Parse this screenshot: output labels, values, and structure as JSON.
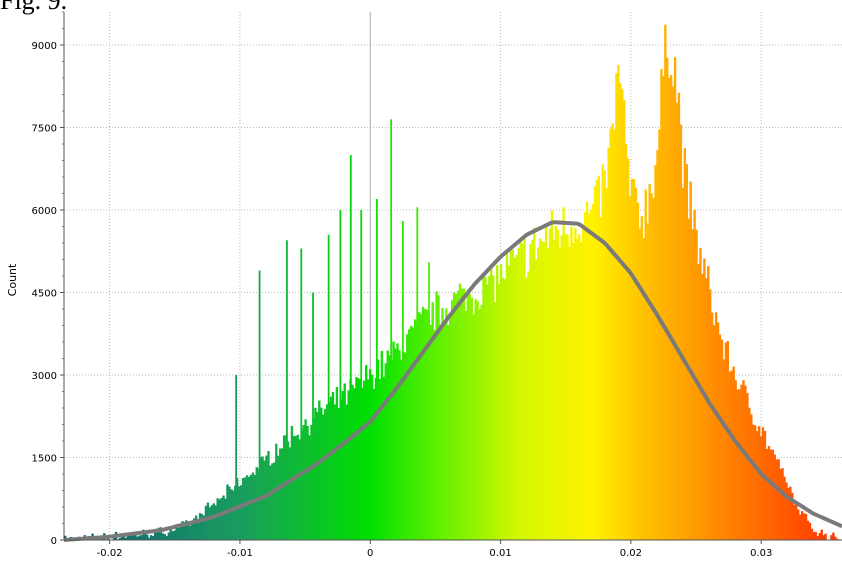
{
  "figure_label": "Fig. 9.",
  "chart_data": {
    "type": "bar",
    "title": "",
    "xlabel": "",
    "ylabel": "Count",
    "xlim": [
      -0.0235,
      0.0362
    ],
    "ylim": [
      0,
      9600
    ],
    "grid": true,
    "legend": "none",
    "x_ticks": [
      -0.02,
      -0.01,
      0,
      0.01,
      0.02,
      0.03
    ],
    "x_tick_labels": [
      "-0.02",
      "-0.01",
      "0",
      "0.01",
      "0.02",
      "0.03"
    ],
    "y_ticks": [
      0,
      1500,
      3000,
      4500,
      6000,
      7500,
      9000
    ],
    "y_tick_labels": [
      "0",
      "1500",
      "3000",
      "4500",
      "6000",
      "7500",
      "9000"
    ],
    "series": [
      {
        "kind": "histogram",
        "bin_width": 0.00015,
        "x": [
          -0.0235,
          -0.022,
          -0.02,
          -0.018,
          -0.016,
          -0.015,
          -0.014,
          -0.013,
          -0.012,
          -0.011,
          -0.01,
          -0.009,
          -0.008,
          -0.007,
          -0.006,
          -0.005,
          -0.004,
          -0.003,
          -0.002,
          -0.001,
          0,
          0.001,
          0.002,
          0.003,
          0.004,
          0.005,
          0.006,
          0.007,
          0.008,
          0.009,
          0.01,
          0.011,
          0.012,
          0.013,
          0.014,
          0.015,
          0.016,
          0.017,
          0.018,
          0.0185,
          0.019,
          0.0195,
          0.02,
          0.021,
          0.022,
          0.0225,
          0.023,
          0.0235,
          0.024,
          0.025,
          0.026,
          0.027,
          0.028,
          0.029,
          0.03,
          0.031,
          0.032,
          0.033,
          0.034,
          0.035,
          0.0362
        ],
        "y": [
          0,
          30,
          60,
          100,
          150,
          210,
          300,
          450,
          650,
          850,
          1050,
          1250,
          1450,
          1700,
          1900,
          2100,
          2300,
          2450,
          2600,
          2800,
          3000,
          3200,
          3400,
          3700,
          3950,
          4150,
          4300,
          4400,
          4500,
          4650,
          4800,
          5000,
          5200,
          5400,
          5600,
          5700,
          5800,
          5900,
          6500,
          7200,
          8500,
          7500,
          6200,
          5900,
          7000,
          8500,
          9200,
          8400,
          6800,
          5500,
          4500,
          3600,
          3000,
          2500,
          2000,
          1500,
          1000,
          500,
          200,
          80,
          20
        ],
        "spikes": [
          {
            "x": -0.0103,
            "y": 3000
          },
          {
            "x": -0.0085,
            "y": 4900
          },
          {
            "x": -0.0064,
            "y": 5450
          },
          {
            "x": -0.0053,
            "y": 5300
          },
          {
            "x": -0.0044,
            "y": 4500
          },
          {
            "x": -0.0032,
            "y": 5550
          },
          {
            "x": -0.0023,
            "y": 6000
          },
          {
            "x": -0.0015,
            "y": 7000
          },
          {
            "x": -0.0007,
            "y": 6000
          },
          {
            "x": 0.0005,
            "y": 6200
          },
          {
            "x": 0.0016,
            "y": 7650
          },
          {
            "x": 0.0025,
            "y": 5800
          },
          {
            "x": 0.0036,
            "y": 6050
          },
          {
            "x": 0.0045,
            "y": 5050
          }
        ],
        "colors": {
          "stops": [
            {
              "x": -0.0235,
              "color": "#0e5b7a"
            },
            {
              "x": -0.01,
              "color": "#1a9d5e"
            },
            {
              "x": 0.0,
              "color": "#00e000"
            },
            {
              "x": 0.005,
              "color": "#5df000"
            },
            {
              "x": 0.0115,
              "color": "#d6f700"
            },
            {
              "x": 0.017,
              "color": "#fff200"
            },
            {
              "x": 0.021,
              "color": "#ffc000"
            },
            {
              "x": 0.026,
              "color": "#ff9000"
            },
            {
              "x": 0.035,
              "color": "#ff3a00"
            }
          ]
        }
      },
      {
        "kind": "fit-curve",
        "line_type": "line",
        "color": "#7a7a7a",
        "x": [
          -0.0235,
          -0.02,
          -0.016,
          -0.012,
          -0.008,
          -0.004,
          -0.001,
          0.0,
          0.002,
          0.004,
          0.006,
          0.008,
          0.01,
          0.012,
          0.014,
          0.016,
          0.018,
          0.02,
          0.022,
          0.024,
          0.026,
          0.028,
          0.03,
          0.032,
          0.034,
          0.0362
        ],
        "y": [
          0,
          60,
          180,
          420,
          800,
          1400,
          1950,
          2150,
          2750,
          3400,
          4050,
          4650,
          5150,
          5550,
          5780,
          5750,
          5400,
          4850,
          4100,
          3300,
          2500,
          1800,
          1200,
          780,
          480,
          250
        ]
      }
    ]
  }
}
